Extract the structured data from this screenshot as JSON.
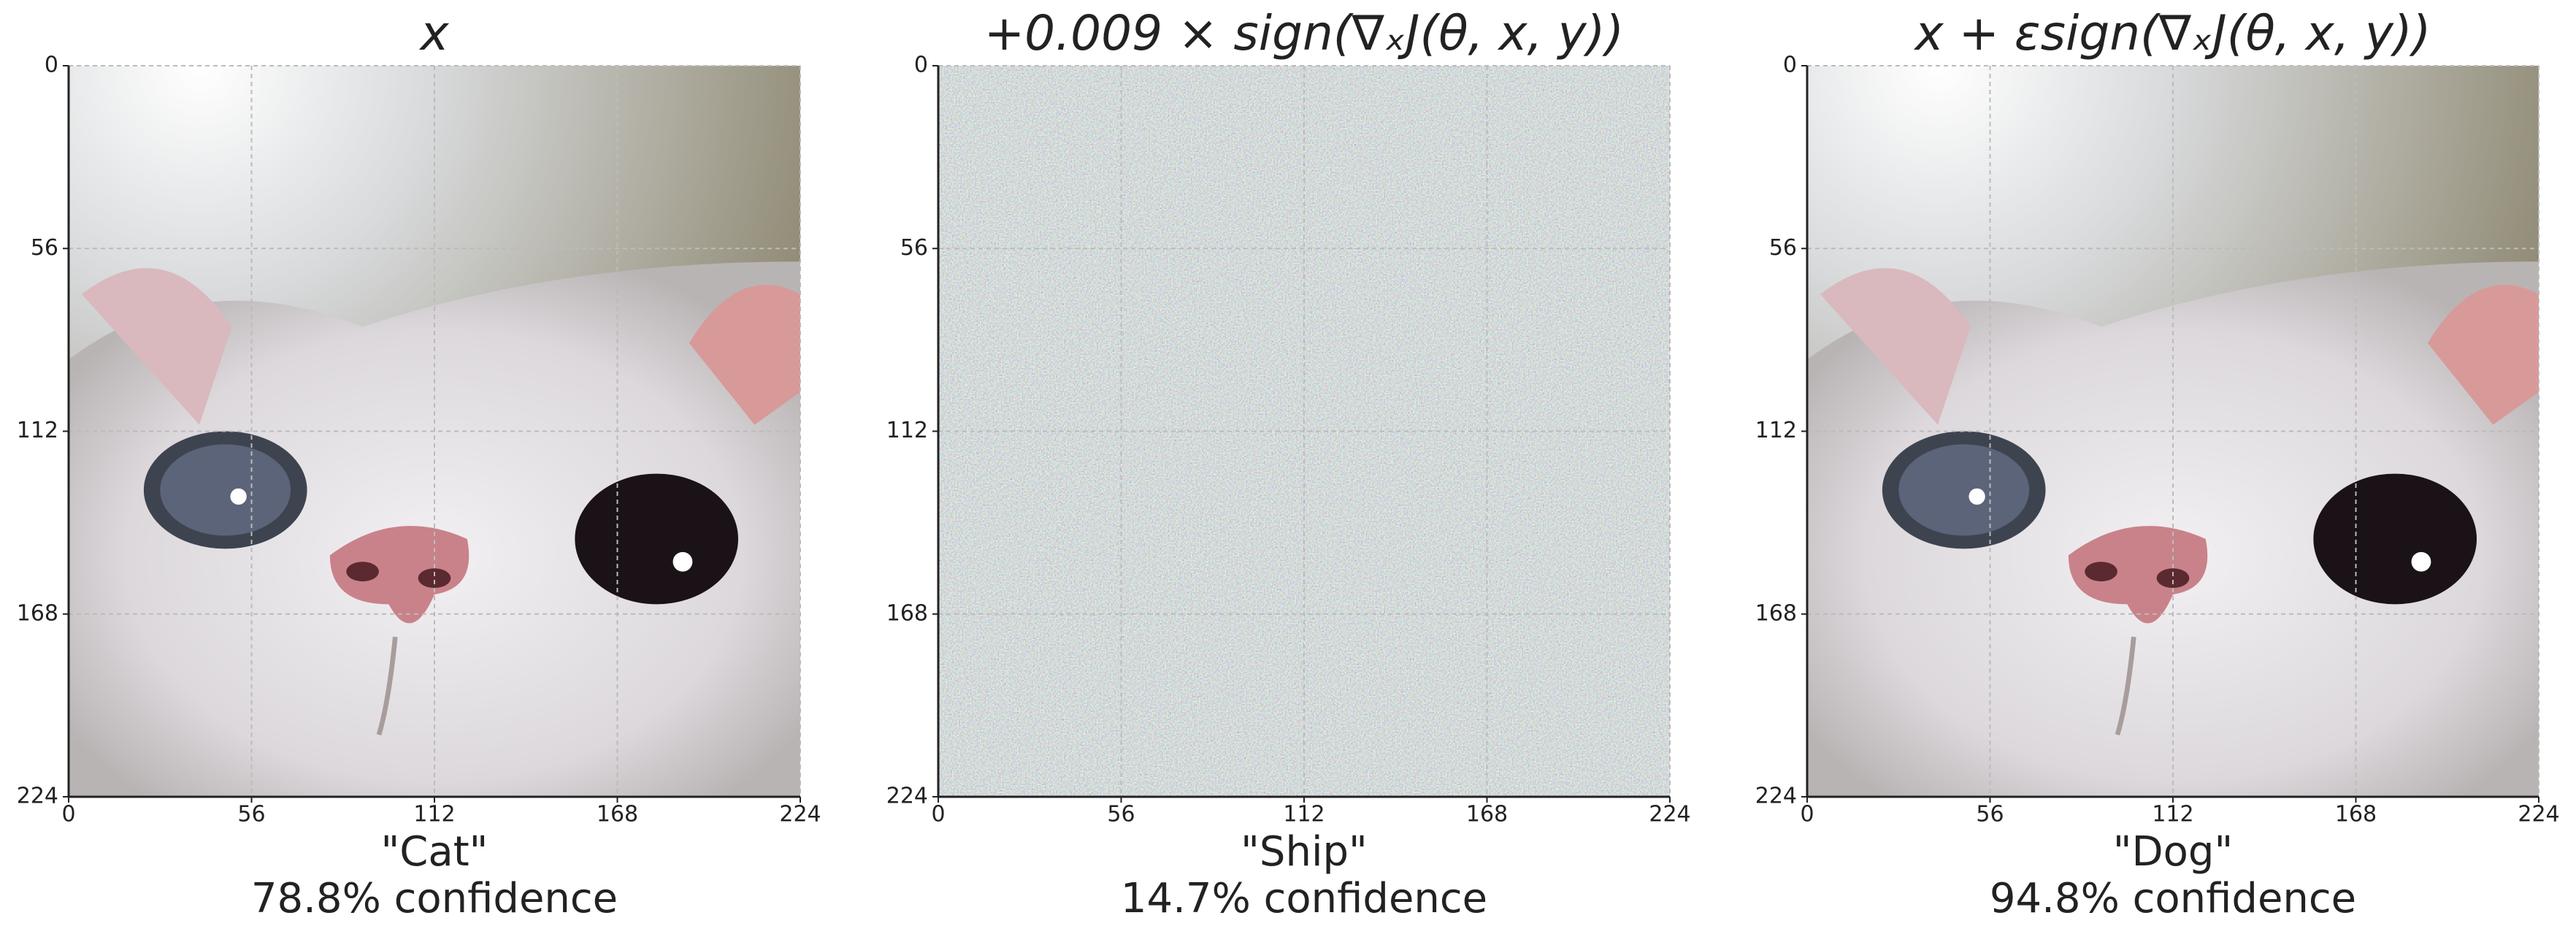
{
  "chart_data": [
    {
      "type": "image",
      "title": "x",
      "label": "\"Cat\"",
      "annotation": "78.8% confidence",
      "xlim": [
        0,
        224
      ],
      "ylim": [
        224,
        0
      ],
      "xticks": [
        0,
        56,
        112,
        168,
        224
      ],
      "yticks": [
        0,
        56,
        112,
        168,
        224
      ],
      "grid": true
    },
    {
      "type": "image",
      "title": "+0.009 × sign(∇ₓJ(θ, x, y))",
      "label": "\"Ship\"",
      "annotation": "14.7% confidence",
      "xlim": [
        0,
        224
      ],
      "ylim": [
        224,
        0
      ],
      "xticks": [
        0,
        56,
        112,
        168,
        224
      ],
      "yticks": [
        0,
        56,
        112,
        168,
        224
      ],
      "grid": true
    },
    {
      "type": "image",
      "title": "x + εsign(∇ₓJ(θ, x, y))",
      "label": "\"Dog\"",
      "annotation": "94.8% confidence",
      "xlim": [
        0,
        224
      ],
      "ylim": [
        224,
        0
      ],
      "xticks": [
        0,
        56,
        112,
        168,
        224
      ],
      "yticks": [
        0,
        56,
        112,
        168,
        224
      ],
      "grid": true
    }
  ]
}
